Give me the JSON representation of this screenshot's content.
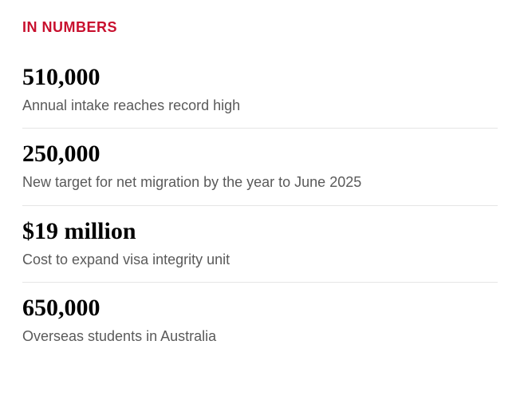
{
  "section_title": "IN NUMBERS",
  "colors": {
    "title": "#c8102e",
    "value": "#000000",
    "description": "#5a5a5a",
    "divider": "#e5e5e5",
    "background": "#ffffff"
  },
  "typography": {
    "title_fontsize": 18,
    "value_fontsize": 30,
    "description_fontsize": 18,
    "value_font": "Georgia, serif",
    "label_font": "sans-serif"
  },
  "stats": [
    {
      "value": "510,000",
      "description": "Annual intake reaches record high"
    },
    {
      "value": "250,000",
      "description": "New target for net migration by the year to June 2025"
    },
    {
      "value": "$19 million",
      "description": "Cost to expand visa integrity unit"
    },
    {
      "value": "650,000",
      "description": "Overseas students in Australia"
    }
  ]
}
